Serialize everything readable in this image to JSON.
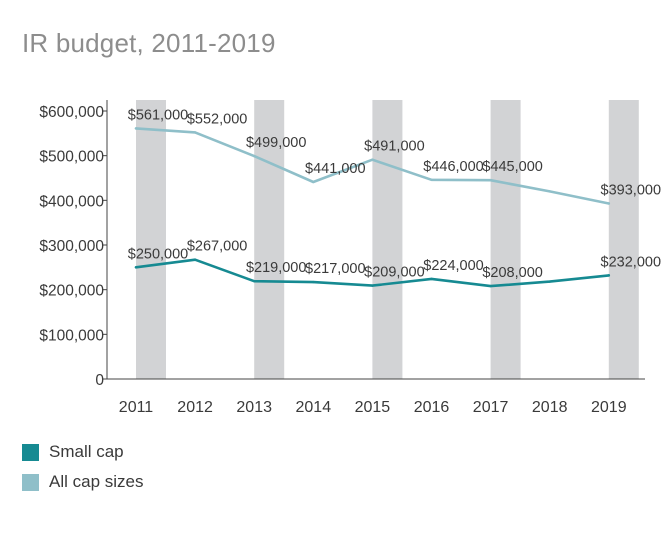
{
  "chart_data": {
    "type": "line",
    "title": "IR budget, 2011-2019",
    "xlabel": "",
    "ylabel": "",
    "categories": [
      "2011",
      "2012",
      "2013",
      "2014",
      "2015",
      "2016",
      "2017",
      "2018",
      "2019"
    ],
    "ylim": [
      0,
      600000
    ],
    "yticks": [
      {
        "value": 0,
        "label": "0"
      },
      {
        "value": 100000,
        "label": "$100,000"
      },
      {
        "value": 200000,
        "label": "$200,000"
      },
      {
        "value": 300000,
        "label": "$300,000"
      },
      {
        "value": 400000,
        "label": "$400,000"
      },
      {
        "value": 500000,
        "label": "$500,000"
      },
      {
        "value": 600000,
        "label": "$600,000"
      }
    ],
    "shaded_categories": [
      "2011",
      "2013",
      "2015",
      "2017",
      "2019"
    ],
    "legend_position": "bottom-left",
    "series": [
      {
        "name": "Small cap",
        "color": "#168a92",
        "values": [
          250000,
          267000,
          219000,
          217000,
          209000,
          224000,
          208000,
          218000,
          232000
        ],
        "labels": [
          "$250,000",
          "$267,000",
          "$219,000",
          "$217,000",
          "$209,000",
          "$224,000",
          "$208,000",
          "",
          "$232,000"
        ]
      },
      {
        "name": "All cap sizes",
        "color": "#8fbfc9",
        "values": [
          561000,
          552000,
          499000,
          441000,
          491000,
          446000,
          445000,
          420000,
          393000
        ],
        "labels": [
          "$561,000",
          "$552,000",
          "$499,000",
          "$441,000",
          "$491,000",
          "$446,000",
          "$445,000",
          "",
          "$393,000"
        ]
      }
    ],
    "colors": {
      "shade": "#d2d3d5",
      "axis": "#444444",
      "text": "#3a3a3a"
    }
  }
}
